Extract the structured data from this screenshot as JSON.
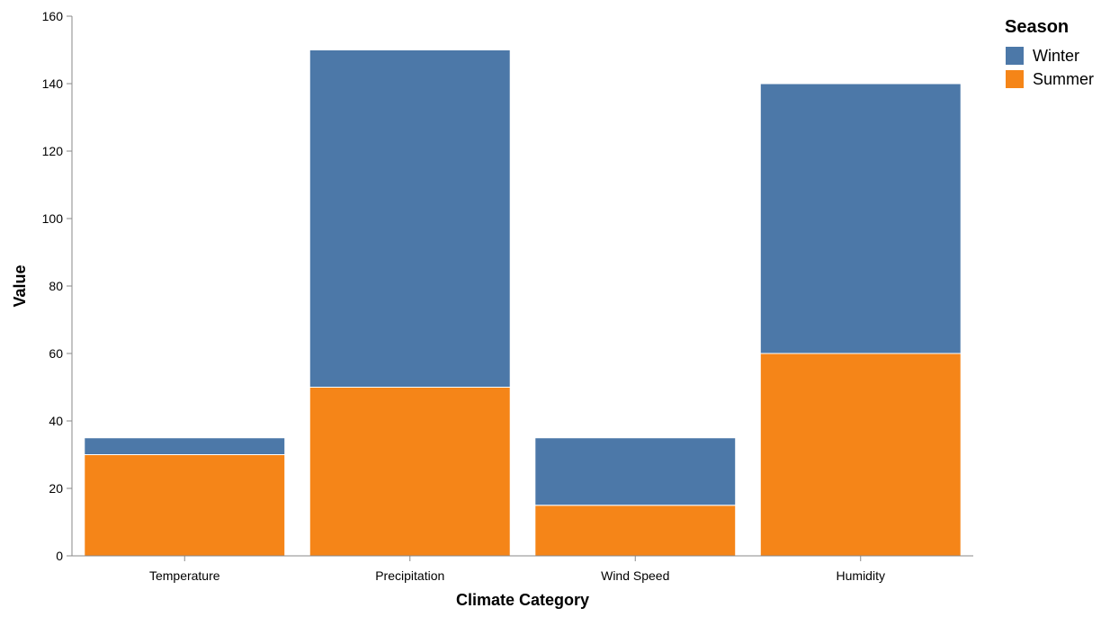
{
  "chart_data": {
    "type": "bar",
    "stacked": true,
    "categories": [
      "Temperature",
      "Precipitation",
      "Wind Speed",
      "Humidity"
    ],
    "series": [
      {
        "name": "Summer",
        "color": "#f58518",
        "values": [
          30,
          50,
          15,
          60
        ]
      },
      {
        "name": "Winter",
        "color": "#4c78a8",
        "values": [
          5,
          100,
          20,
          80
        ]
      }
    ],
    "xlabel": "Climate Category",
    "ylabel": "Value",
    "ylim": [
      0,
      160
    ],
    "yticks": [
      0,
      20,
      40,
      60,
      80,
      100,
      120,
      140,
      160
    ],
    "grid": false,
    "legend": {
      "title": "Season",
      "placement": "top-right",
      "entries": [
        {
          "label": "Winter",
          "color": "#4c78a8"
        },
        {
          "label": "Summer",
          "color": "#f58518"
        }
      ]
    }
  }
}
